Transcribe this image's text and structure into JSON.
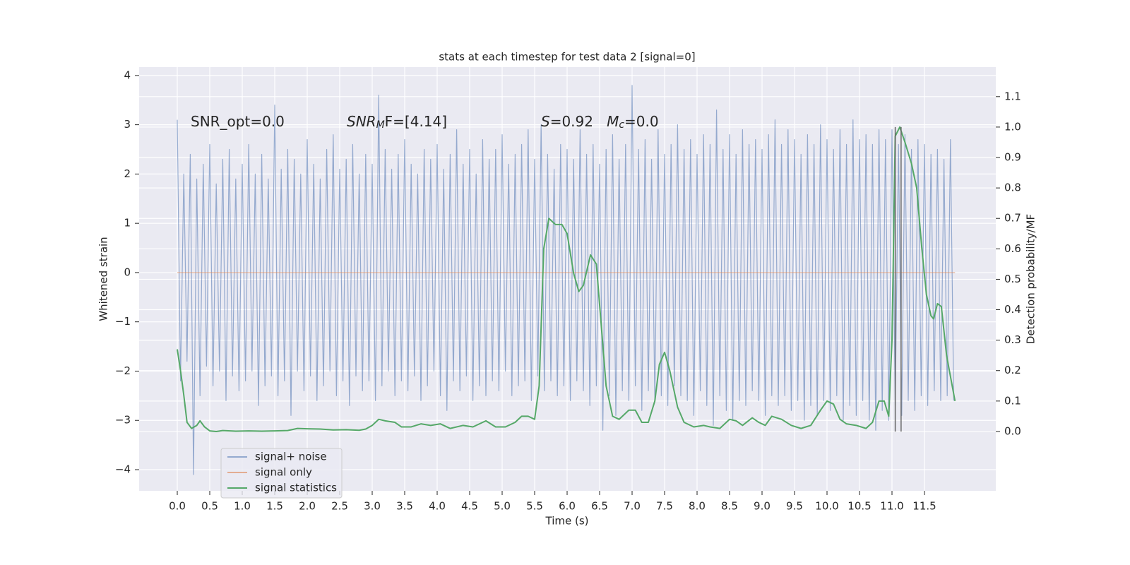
{
  "chart_data": {
    "type": "line",
    "title": "stats at each timestep for test data 2 [signal=0]",
    "x_label": "Time (s)",
    "y_label": "Whitened strain",
    "y2_label": "Detection probability/MF",
    "xlim": [
      -0.587,
      12.598
    ],
    "ylim": [
      -4.43,
      4.17
    ],
    "y2lim": [
      -0.195,
      1.197
    ],
    "xticks": [
      {
        "value": 0,
        "label": "0.0"
      },
      {
        "value": 0.5,
        "label": "0.5"
      },
      {
        "value": 1,
        "label": "1.0"
      },
      {
        "value": 1.5,
        "label": "1.5"
      },
      {
        "value": 2,
        "label": "2.0"
      },
      {
        "value": 2.5,
        "label": "2.5"
      },
      {
        "value": 3,
        "label": "3.0"
      },
      {
        "value": 3.5,
        "label": "3.5"
      },
      {
        "value": 4,
        "label": "4.0"
      },
      {
        "value": 4.5,
        "label": "4.5"
      },
      {
        "value": 5,
        "label": "5.0"
      },
      {
        "value": 5.5,
        "label": "5.5"
      },
      {
        "value": 6,
        "label": "6.0"
      },
      {
        "value": 6.5,
        "label": "6.5"
      },
      {
        "value": 7,
        "label": "7.0"
      },
      {
        "value": 7.5,
        "label": "7.5"
      },
      {
        "value": 8,
        "label": "8.0"
      },
      {
        "value": 8.5,
        "label": "8.5"
      },
      {
        "value": 9,
        "label": "9.0"
      },
      {
        "value": 9.5,
        "label": "9.5"
      },
      {
        "value": 10,
        "label": "10.0"
      },
      {
        "value": 10.5,
        "label": "10.5"
      },
      {
        "value": 11,
        "label": "11.0"
      },
      {
        "value": 11.5,
        "label": "11.5"
      }
    ],
    "yticks": [
      {
        "value": -4,
        "label": "−4"
      },
      {
        "value": -3,
        "label": "−3"
      },
      {
        "value": -2,
        "label": "−2"
      },
      {
        "value": -1,
        "label": "−1"
      },
      0,
      1,
      2,
      3,
      4
    ],
    "y2ticks": [
      {
        "value": 0,
        "label": "0.0"
      },
      {
        "value": 0.1,
        "label": "0.1"
      },
      {
        "value": 0.2,
        "label": "0.2"
      },
      {
        "value": 0.3,
        "label": "0.3"
      },
      {
        "value": 0.4,
        "label": "0.4"
      },
      {
        "value": 0.5,
        "label": "0.5"
      },
      {
        "value": 0.6,
        "label": "0.6"
      },
      {
        "value": 0.7,
        "label": "0.7"
      },
      {
        "value": 0.8,
        "label": "0.8"
      },
      {
        "value": 0.9,
        "label": "0.9"
      },
      {
        "value": 1.0,
        "label": "1.0"
      },
      {
        "value": 1.1,
        "label": "1.1"
      }
    ],
    "grid": true,
    "legend": "lower left",
    "annotations": [
      [
        {
          "text": "SNR_opt=0.0"
        }
      ],
      [
        {
          "text": "SNR",
          "italic": true
        },
        {
          "text": "M",
          "italic": true,
          "sub": true
        },
        {
          "text": "F=[4.14]"
        }
      ],
      [
        {
          "text": "S",
          "italic": true
        },
        {
          "text": "=0.92   "
        },
        {
          "text": "M",
          "italic": true
        },
        {
          "text": "c",
          "italic": true,
          "sub": true
        },
        {
          "text": "=0.0"
        }
      ]
    ],
    "vlines": {
      "x": [
        11.05,
        11.14
      ],
      "y2range": [
        0,
        1
      ],
      "color": "#666666"
    },
    "series": [
      {
        "name": "signal+ noise",
        "color": "#4c72b0",
        "opacity": 0.55,
        "x": [
          0,
          0.05,
          0.1,
          0.15,
          0.2,
          0.25,
          0.3,
          0.35,
          0.4,
          0.45,
          0.5,
          0.55,
          0.6,
          0.65,
          0.7,
          0.75,
          0.8,
          0.85,
          0.9,
          0.95,
          1,
          1.05,
          1.1,
          1.15,
          1.2,
          1.25,
          1.3,
          1.35,
          1.4,
          1.45,
          1.5,
          1.55,
          1.6,
          1.65,
          1.7,
          1.75,
          1.8,
          1.85,
          1.9,
          1.95,
          2,
          2.05,
          2.1,
          2.15,
          2.2,
          2.25,
          2.3,
          2.35,
          2.4,
          2.45,
          2.5,
          2.55,
          2.6,
          2.65,
          2.7,
          2.75,
          2.8,
          2.85,
          2.9,
          2.95,
          3,
          3.05,
          3.1,
          3.15,
          3.2,
          3.25,
          3.3,
          3.35,
          3.4,
          3.45,
          3.5,
          3.55,
          3.6,
          3.65,
          3.7,
          3.75,
          3.8,
          3.85,
          3.9,
          3.95,
          4,
          4.05,
          4.1,
          4.15,
          4.2,
          4.25,
          4.3,
          4.35,
          4.4,
          4.45,
          4.5,
          4.55,
          4.6,
          4.65,
          4.7,
          4.75,
          4.8,
          4.85,
          4.9,
          4.95,
          5,
          5.05,
          5.1,
          5.15,
          5.2,
          5.25,
          5.3,
          5.35,
          5.4,
          5.45,
          5.5,
          5.55,
          5.6,
          5.65,
          5.7,
          5.75,
          5.8,
          5.85,
          5.9,
          5.95,
          6,
          6.05,
          6.1,
          6.15,
          6.2,
          6.25,
          6.3,
          6.35,
          6.4,
          6.45,
          6.5,
          6.55,
          6.6,
          6.65,
          6.7,
          6.75,
          6.8,
          6.85,
          6.9,
          6.95,
          7,
          7.05,
          7.1,
          7.15,
          7.2,
          7.25,
          7.3,
          7.35,
          7.4,
          7.45,
          7.5,
          7.55,
          7.6,
          7.65,
          7.7,
          7.75,
          7.8,
          7.85,
          7.9,
          7.95,
          8,
          8.05,
          8.1,
          8.15,
          8.2,
          8.25,
          8.3,
          8.35,
          8.4,
          8.45,
          8.5,
          8.55,
          8.6,
          8.65,
          8.7,
          8.75,
          8.8,
          8.85,
          8.9,
          8.95,
          9,
          9.05,
          9.1,
          9.15,
          9.2,
          9.25,
          9.3,
          9.35,
          9.4,
          9.45,
          9.5,
          9.55,
          9.6,
          9.65,
          9.7,
          9.75,
          9.8,
          9.85,
          9.9,
          9.95,
          10,
          10.05,
          10.1,
          10.15,
          10.2,
          10.25,
          10.3,
          10.35,
          10.4,
          10.45,
          10.5,
          10.55,
          10.6,
          10.65,
          10.7,
          10.75,
          10.8,
          10.85,
          10.9,
          10.95,
          11,
          11.05,
          11.1,
          11.15,
          11.2,
          11.25,
          11.3,
          11.35,
          11.4,
          11.45,
          11.5,
          11.55,
          11.6,
          11.65,
          11.7,
          11.75,
          11.8,
          11.85,
          11.9,
          11.95
        ],
        "values": [
          3.1,
          -2.2,
          2.0,
          -1.8,
          2.4,
          -4.1,
          1.9,
          -2.5,
          2.2,
          -1.9,
          2.6,
          -2.3,
          1.8,
          -2.0,
          2.3,
          -2.6,
          2.5,
          -2.1,
          1.9,
          -2.4,
          2.2,
          -2.2,
          2.6,
          -2.0,
          2.0,
          -2.7,
          2.4,
          -2.3,
          1.9,
          -2.1,
          3.4,
          -2.5,
          2.1,
          -2.2,
          2.5,
          -2.9,
          2.3,
          -2.0,
          2.0,
          -2.4,
          2.7,
          -2.1,
          2.2,
          -2.6,
          1.9,
          -2.3,
          2.5,
          -2.0,
          2.8,
          -2.5,
          2.1,
          -2.2,
          2.3,
          -2.7,
          2.6,
          -2.1,
          2.0,
          -2.4,
          2.4,
          -2.2,
          2.2,
          -2.6,
          3.6,
          -2.3,
          2.5,
          -2.0,
          2.1,
          -2.5,
          2.4,
          -2.2,
          2.7,
          -2.4,
          2.2,
          -2.1,
          2.0,
          -2.6,
          2.5,
          -2.3,
          2.3,
          -2.0,
          2.6,
          -2.5,
          2.1,
          -2.8,
          2.4,
          -2.2,
          2.9,
          -2.4,
          2.2,
          -2.1,
          2.5,
          -2.6,
          2.0,
          -2.3,
          2.7,
          -2.5,
          2.3,
          -2.2,
          2.5,
          -2.4,
          2.8,
          -2.0,
          2.2,
          -2.5,
          2.4,
          -2.3,
          2.6,
          -2.2,
          2.9,
          -2.6,
          2.3,
          -2.1,
          3.0,
          -2.4,
          2.4,
          -2.2,
          2.1,
          -2.5,
          2.6,
          -2.3,
          2.5,
          -2.6,
          2.3,
          -2.2,
          2.9,
          -2.4,
          2.4,
          -2.7,
          2.6,
          -2.3,
          2.2,
          -3.2,
          2.5,
          -2.5,
          2.8,
          -2.9,
          2.3,
          -2.4,
          2.6,
          -2.6,
          3.8,
          -2.3,
          2.5,
          -2.8,
          2.7,
          -2.4,
          2.3,
          -2.6,
          2.9,
          -2.5,
          2.4,
          -2.7,
          2.6,
          -2.3,
          3.0,
          -2.5,
          2.5,
          -2.6,
          2.7,
          -2.9,
          2.4,
          -2.4,
          2.8,
          -2.7,
          2.6,
          -3.1,
          3.3,
          -2.5,
          2.5,
          -2.8,
          2.8,
          -3.0,
          2.4,
          -2.6,
          2.9,
          -2.7,
          2.6,
          -2.4,
          2.7,
          -2.6,
          2.5,
          -2.9,
          2.8,
          -2.5,
          3.1,
          -2.7,
          2.6,
          -2.5,
          2.9,
          -2.8,
          2.7,
          -2.6,
          2.4,
          -3.0,
          2.8,
          -2.7,
          2.6,
          -2.9,
          3.0,
          -2.6,
          2.7,
          -2.8,
          2.5,
          -2.5,
          2.9,
          -3.0,
          2.6,
          -2.7,
          3.1,
          -2.9,
          2.7,
          -2.6,
          2.8,
          -3.0,
          2.6,
          -3.2,
          2.9,
          -2.8,
          2.7,
          -3.0,
          2.9,
          -2.7,
          2.6,
          -2.9,
          2.8,
          -2.6,
          2.5,
          -2.8,
          2.7,
          -2.5,
          2.6,
          -2.7,
          2.4,
          -2.4,
          2.5,
          -2.6,
          2.3,
          -2.5,
          2.7,
          -2.6
        ]
      },
      {
        "name": "signal only",
        "color": "#dd8452",
        "opacity": 0.6,
        "x": [
          0,
          11.97
        ],
        "values": [
          0,
          0
        ]
      },
      {
        "name": "signal statistics",
        "color": "#55a868",
        "opacity": 1,
        "axis": "y2",
        "x": [
          0,
          0.05,
          0.1,
          0.15,
          0.22,
          0.3,
          0.35,
          0.42,
          0.5,
          0.6,
          0.7,
          0.9,
          1.1,
          1.3,
          1.5,
          1.7,
          1.85,
          2.0,
          2.2,
          2.4,
          2.6,
          2.8,
          2.9,
          3.0,
          3.1,
          3.2,
          3.35,
          3.45,
          3.6,
          3.75,
          3.9,
          4.05,
          4.2,
          4.4,
          4.55,
          4.75,
          4.9,
          5.05,
          5.2,
          5.3,
          5.4,
          5.5,
          5.57,
          5.64,
          5.72,
          5.82,
          5.92,
          6.0,
          6.1,
          6.18,
          6.25,
          6.36,
          6.45,
          6.6,
          6.7,
          6.8,
          6.9,
          6.95,
          7.05,
          7.15,
          7.25,
          7.35,
          7.42,
          7.5,
          7.58,
          7.7,
          7.8,
          7.95,
          8.1,
          8.2,
          8.35,
          8.5,
          8.6,
          8.7,
          8.85,
          8.95,
          9.05,
          9.15,
          9.3,
          9.45,
          9.6,
          9.75,
          9.9,
          10.0,
          10.1,
          10.2,
          10.3,
          10.45,
          10.6,
          10.7,
          10.8,
          10.88,
          10.95,
          11.0,
          11.05,
          11.12,
          11.2,
          11.3,
          11.38,
          11.46,
          11.53,
          11.6,
          11.64,
          11.7,
          11.76,
          11.84,
          11.97
        ],
        "values": [
          0.27,
          0.2,
          0.12,
          0.03,
          0.01,
          0.02,
          0.035,
          0.015,
          0.002,
          0.0,
          0.003,
          0.001,
          0.002,
          0.001,
          0.002,
          0.003,
          0.01,
          0.009,
          0.008,
          0.005,
          0.006,
          0.004,
          0.008,
          0.02,
          0.04,
          0.035,
          0.03,
          0.015,
          0.015,
          0.025,
          0.02,
          0.025,
          0.01,
          0.02,
          0.015,
          0.035,
          0.015,
          0.015,
          0.03,
          0.05,
          0.05,
          0.04,
          0.15,
          0.6,
          0.7,
          0.68,
          0.68,
          0.65,
          0.52,
          0.46,
          0.48,
          0.58,
          0.55,
          0.15,
          0.05,
          0.04,
          0.06,
          0.07,
          0.07,
          0.03,
          0.03,
          0.1,
          0.22,
          0.26,
          0.2,
          0.08,
          0.03,
          0.015,
          0.02,
          0.015,
          0.01,
          0.04,
          0.035,
          0.02,
          0.045,
          0.03,
          0.02,
          0.05,
          0.04,
          0.02,
          0.01,
          0.02,
          0.07,
          0.1,
          0.09,
          0.04,
          0.025,
          0.02,
          0.01,
          0.03,
          0.1,
          0.1,
          0.05,
          0.3,
          0.97,
          1.0,
          0.95,
          0.88,
          0.8,
          0.6,
          0.45,
          0.38,
          0.37,
          0.42,
          0.41,
          0.25,
          0.1
        ]
      }
    ]
  }
}
